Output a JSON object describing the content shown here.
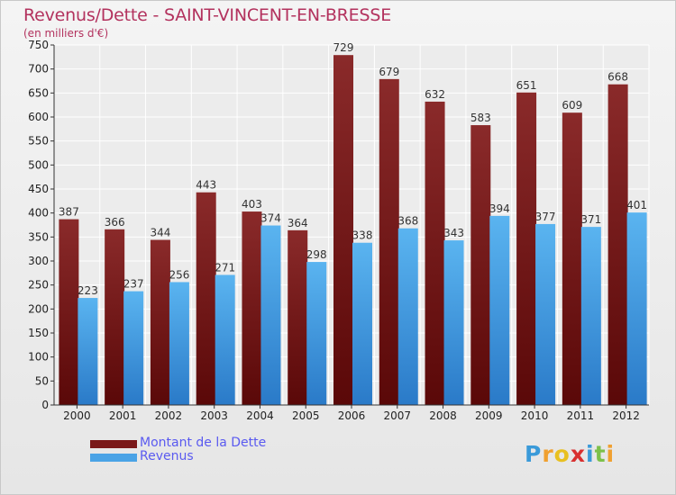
{
  "chart_data": {
    "type": "bar",
    "title": "Revenus/Dette - SAINT-VINCENT-EN-BRESSE",
    "ylabel": "(en milliers d'€)",
    "xlabel": "",
    "ylim": [
      0,
      750
    ],
    "yticks": [
      "0",
      "50",
      "100",
      "150",
      "200",
      "250",
      "300",
      "350",
      "400",
      "450",
      "500",
      "550",
      "600",
      "650",
      "700",
      "750"
    ],
    "categories": [
      "2000",
      "2001",
      "2002",
      "2003",
      "2004",
      "2005",
      "2006",
      "2007",
      "2008",
      "2009",
      "2010",
      "2011",
      "2012"
    ],
    "series": [
      {
        "name": "Montant de la Dette",
        "color": "#7a1818",
        "values": [
          387,
          366,
          344,
          443,
          403,
          364,
          729,
          679,
          632,
          583,
          651,
          609,
          668
        ]
      },
      {
        "name": "Revenus",
        "color": "#4aa3e6",
        "values": [
          223,
          237,
          256,
          271,
          374,
          298,
          338,
          368,
          343,
          394,
          377,
          371,
          401
        ]
      }
    ],
    "grid": true,
    "legend": "bottom-left"
  },
  "logo": {
    "letters": [
      "P",
      "r",
      "o",
      "x",
      "i",
      "t",
      "i"
    ],
    "colors": [
      "#3a9ad9",
      "#f0a030",
      "#e8c020",
      "#d83030",
      "#3a9ad9",
      "#7cc04a",
      "#f0a030"
    ]
  }
}
